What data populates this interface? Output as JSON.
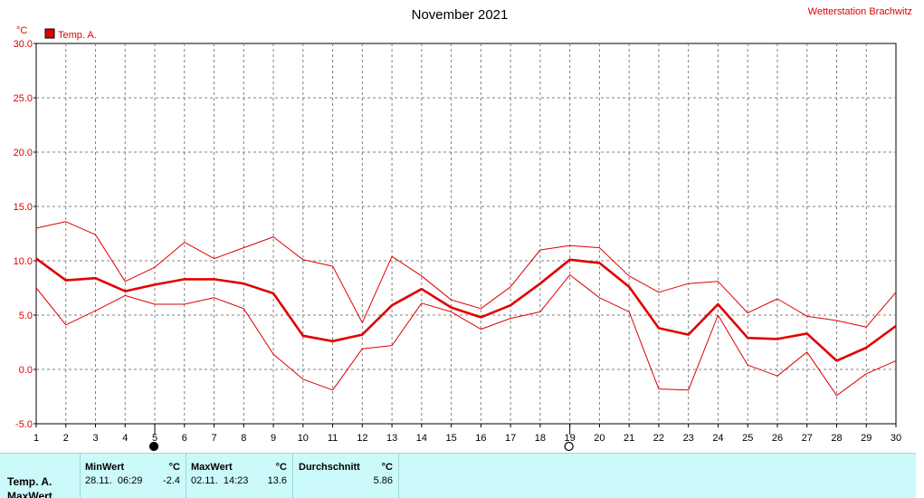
{
  "header": {
    "title": "November 2021",
    "station": "Wetterstation Brachwitz",
    "unit": "°C"
  },
  "legend": [
    {
      "label": "Temp. A.",
      "color": "#e00000"
    }
  ],
  "chart_data": {
    "type": "line",
    "title": "November 2021",
    "ylabel": "°C",
    "xlim": [
      1,
      30
    ],
    "ylim": [
      -5,
      30
    ],
    "x_ticks": [
      1,
      2,
      3,
      4,
      5,
      6,
      7,
      8,
      9,
      10,
      11,
      12,
      13,
      14,
      15,
      16,
      17,
      18,
      19,
      20,
      21,
      22,
      23,
      24,
      25,
      26,
      27,
      28,
      29,
      30
    ],
    "y_ticks": [
      "-5.0",
      "0.0",
      "5.0",
      "10.0",
      "15.0",
      "20.0",
      "25.0",
      "30.0"
    ],
    "grid": true,
    "legend_position": "top-left",
    "x": [
      1,
      2,
      3,
      4,
      5,
      6,
      7,
      8,
      9,
      10,
      11,
      12,
      13,
      14,
      15,
      16,
      17,
      18,
      19,
      20,
      21,
      22,
      23,
      24,
      25,
      26,
      27,
      28,
      29,
      30
    ],
    "series": [
      {
        "name": "Temp. A.",
        "role": "mean",
        "color": "#e00000",
        "values": [
          10.2,
          8.2,
          8.4,
          7.2,
          7.8,
          8.3,
          8.3,
          7.9,
          7.0,
          3.1,
          2.6,
          3.2,
          5.9,
          7.4,
          5.7,
          4.8,
          5.9,
          7.9,
          10.1,
          9.8,
          7.6,
          3.8,
          3.2,
          6.0,
          2.9,
          2.8,
          3.3,
          0.8,
          2.0,
          4.0
        ]
      },
      {
        "role": "max",
        "color": "#e00000",
        "values": [
          13.0,
          13.6,
          12.4,
          8.1,
          9.4,
          11.7,
          10.2,
          11.2,
          12.2,
          10.1,
          9.5,
          4.3,
          10.4,
          8.6,
          6.4,
          5.6,
          7.6,
          11.0,
          11.4,
          11.2,
          8.6,
          7.1,
          7.9,
          8.1,
          5.2,
          6.5,
          4.9,
          4.5,
          3.9,
          7.1
        ]
      },
      {
        "role": "min",
        "color": "#e00000",
        "values": [
          7.5,
          4.1,
          5.4,
          6.8,
          6.0,
          6.0,
          6.6,
          5.6,
          1.4,
          -0.9,
          -1.9,
          1.9,
          2.2,
          6.1,
          5.3,
          3.7,
          4.7,
          5.3,
          8.7,
          6.6,
          5.3,
          -1.8,
          -1.9,
          5.0,
          0.4,
          -0.6,
          1.6,
          -2.4,
          -0.4,
          0.8
        ]
      }
    ],
    "moon_phases": [
      {
        "day": 5,
        "phase": "new-moon"
      },
      {
        "day": 19,
        "phase": "full-moon"
      }
    ]
  },
  "stats": {
    "row_labels": [
      "Temp. A.",
      "MaxWert"
    ],
    "min": {
      "header": "MinWert",
      "unit": "°C",
      "time": "28.11.  06:29",
      "value": "-2.4"
    },
    "max": {
      "header": "MaxWert",
      "unit": "°C",
      "time": "02.11.  14:23",
      "value": "13.6"
    },
    "avg": {
      "header": "Durchschnitt",
      "unit": "°C",
      "value": "5.86"
    }
  }
}
